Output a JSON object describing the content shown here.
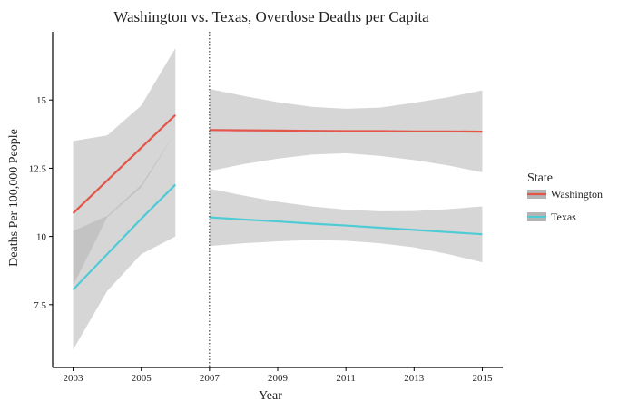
{
  "chart_data": {
    "type": "line",
    "title": "Washington vs. Texas, Overdose Deaths per Capita",
    "xlabel": "Year",
    "ylabel": "Deaths Per 100,000 People",
    "xlim": [
      2002.4,
      2015.6
    ],
    "ylim": [
      5.2,
      17.5
    ],
    "x_ticks": [
      2003,
      2005,
      2007,
      2009,
      2011,
      2013,
      2015
    ],
    "x_tick_labels": [
      "2003",
      "2005",
      "2007",
      "2009",
      "2011",
      "2013",
      "2015"
    ],
    "y_ticks": [
      7.5,
      10,
      12.5,
      15
    ],
    "y_tick_labels": [
      "7.5",
      "10",
      "12.5",
      "15"
    ],
    "vline": 2007,
    "grid": false,
    "legend": {
      "title": "State",
      "placement": "right",
      "entries": [
        "Washington",
        "Texas"
      ]
    },
    "series": [
      {
        "name": "Washington",
        "color": "#e2564b",
        "segments": [
          {
            "x": [
              2003,
              2004,
              2005,
              2006
            ],
            "fit": [
              10.85,
              12.05,
              13.25,
              14.45
            ],
            "lower": [
              8.2,
              10.7,
              11.8,
              13.8
            ],
            "upper": [
              13.5,
              13.7,
              14.8,
              16.9
            ]
          },
          {
            "x": [
              2007,
              2008,
              2009,
              2010,
              2011,
              2012,
              2013,
              2014,
              2015
            ],
            "fit": [
              13.9,
              13.89,
              13.88,
              13.87,
              13.86,
              13.86,
              13.85,
              13.85,
              13.84
            ],
            "lower": [
              12.4,
              12.65,
              12.85,
              13.0,
              13.05,
              12.95,
              12.8,
              12.6,
              12.35
            ],
            "upper": [
              15.4,
              15.15,
              14.92,
              14.75,
              14.68,
              14.72,
              14.9,
              15.1,
              15.35
            ]
          }
        ]
      },
      {
        "name": "Texas",
        "color": "#4fcbd6",
        "segments": [
          {
            "x": [
              2003,
              2004,
              2005,
              2006
            ],
            "fit": [
              8.05,
              9.35,
              10.65,
              11.9
            ],
            "lower": [
              5.85,
              8.0,
              9.35,
              10.0
            ],
            "upper": [
              10.2,
              10.75,
              11.9,
              13.8
            ]
          },
          {
            "x": [
              2007,
              2008,
              2009,
              2010,
              2011,
              2012,
              2013,
              2014,
              2015
            ],
            "fit": [
              10.7,
              10.62,
              10.55,
              10.47,
              10.4,
              10.32,
              10.24,
              10.16,
              10.08
            ],
            "lower": [
              9.65,
              9.75,
              9.82,
              9.87,
              9.84,
              9.75,
              9.6,
              9.35,
              9.05
            ],
            "upper": [
              11.75,
              11.5,
              11.27,
              11.1,
              10.98,
              10.92,
              10.93,
              11.0,
              11.1
            ]
          }
        ]
      }
    ],
    "ribbon_color": "#b4b4b4"
  }
}
